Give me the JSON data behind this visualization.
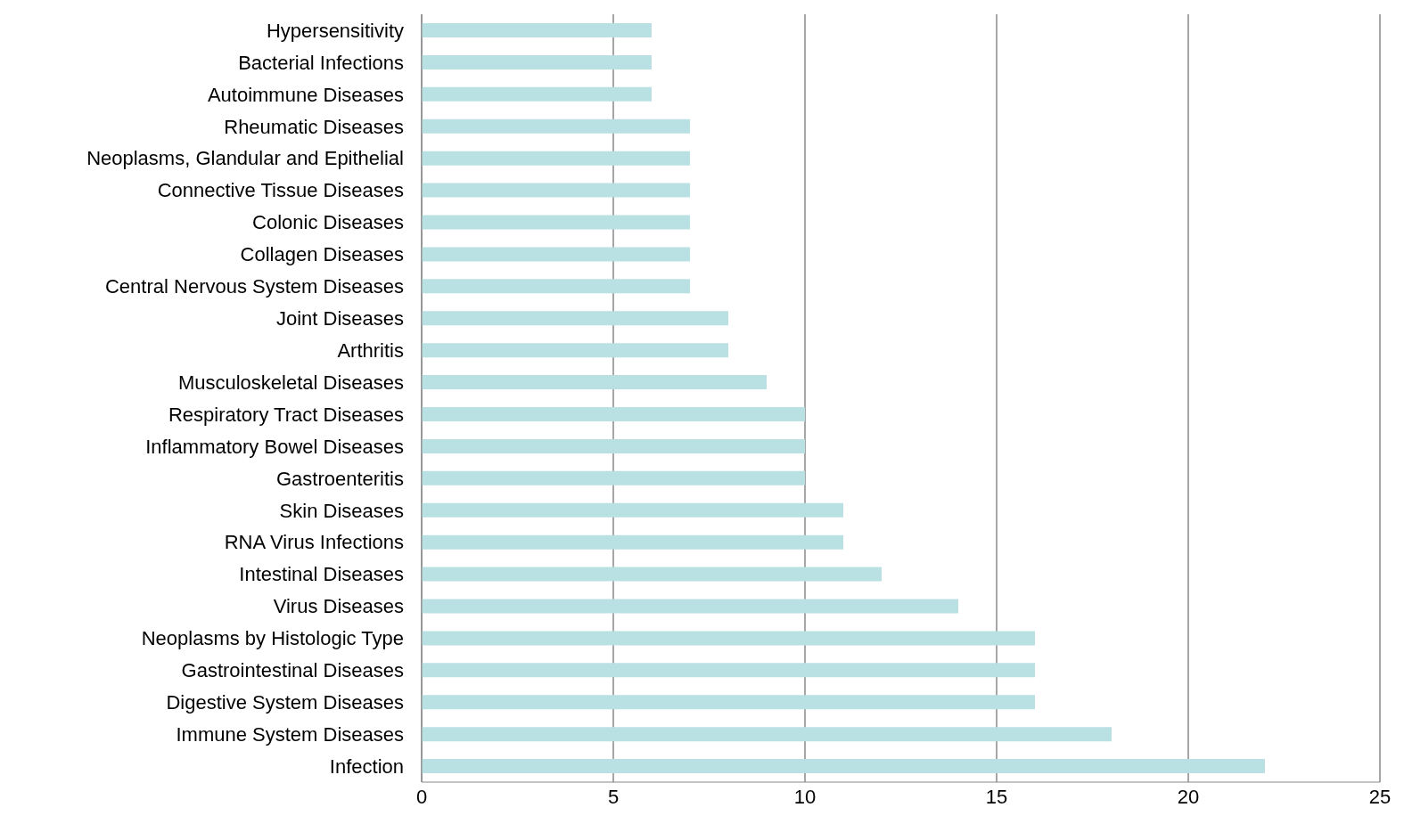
{
  "chart_data": {
    "type": "bar",
    "orientation": "horizontal",
    "categories": [
      "Hypersensitivity",
      "Bacterial Infections",
      "Autoimmune Diseases",
      "Rheumatic Diseases",
      "Neoplasms, Glandular and Epithelial",
      "Connective Tissue Diseases",
      "Colonic Diseases",
      "Collagen Diseases",
      "Central Nervous System Diseases",
      "Joint Diseases",
      "Arthritis",
      "Musculoskeletal Diseases",
      "Respiratory Tract Diseases",
      "Inflammatory Bowel Diseases",
      "Gastroenteritis",
      "Skin Diseases",
      "RNA Virus Infections",
      "Intestinal Diseases",
      "Virus Diseases",
      "Neoplasms by Histologic Type",
      "Gastrointestinal Diseases",
      "Digestive System Diseases",
      "Immune System Diseases",
      "Infection"
    ],
    "values": [
      6,
      6,
      6,
      7,
      7,
      7,
      7,
      7,
      7,
      8,
      8,
      9,
      10,
      10,
      10,
      11,
      11,
      12,
      14,
      16,
      16,
      16,
      18,
      22
    ],
    "color": "#b9e0e3",
    "xlim": [
      0,
      25
    ],
    "xticks": [
      0,
      5,
      10,
      15,
      20,
      25
    ],
    "grid": "x"
  }
}
